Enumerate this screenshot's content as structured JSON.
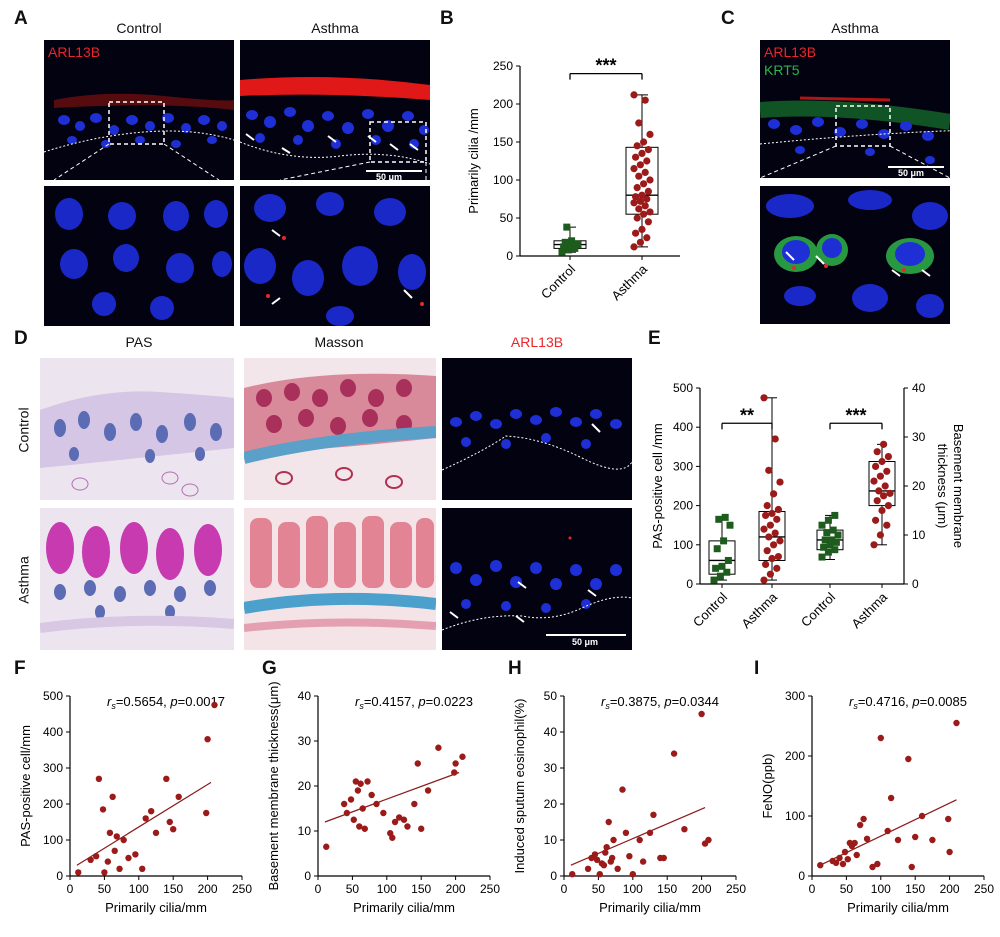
{
  "panel_letters": {
    "a": "A",
    "b": "B",
    "c": "C",
    "d": "D",
    "e": "E",
    "f": "F",
    "g": "G",
    "h": "H",
    "i": "I"
  },
  "panelA": {
    "title_control": "Control",
    "title_asthma": "Asthma",
    "channel": "ARL13B",
    "scale": "50 μm"
  },
  "panelC": {
    "title": "Asthma",
    "channel1": "ARL13B",
    "channel2": "KRT5",
    "scale": "50 μm"
  },
  "panelD": {
    "col1": "PAS",
    "col2": "Masson",
    "col3": "ARL13B",
    "row1": "Control",
    "row2": "Asthma",
    "scale": "50 μm"
  },
  "colors": {
    "control": "#1e5c1e",
    "asthma": "#9b1a1a",
    "fit": "#8b1a1a",
    "arl13b": "#e8262c",
    "krt5": "#2fb34a",
    "nuclei": "#1f2fd6"
  },
  "chart_data": [
    {
      "panel": "B",
      "type": "box",
      "ylabel": "Primarily cilia /mm",
      "ylim": [
        0,
        250
      ],
      "yticks": [
        0,
        50,
        100,
        150,
        200,
        250
      ],
      "categories": [
        "Control",
        "Asthma"
      ],
      "significance": "***",
      "boxes": [
        {
          "name": "Control",
          "min": 5,
          "q1": 10,
          "median": 15,
          "q3": 20,
          "max": 38
        },
        {
          "name": "Asthma",
          "min": 12,
          "q1": 55,
          "median": 80,
          "q3": 143,
          "max": 212
        }
      ],
      "points": {
        "Control": [
          5,
          8,
          10,
          12,
          14,
          16,
          18,
          20,
          15,
          38
        ],
        "Asthma": [
          12,
          18,
          24,
          30,
          35,
          45,
          50,
          55,
          58,
          62,
          66,
          70,
          72,
          75,
          78,
          80,
          85,
          90,
          95,
          100,
          105,
          110,
          115,
          120,
          125,
          130,
          135,
          140,
          145,
          150,
          160,
          175,
          205,
          212
        ]
      }
    },
    {
      "panel": "E",
      "type": "box",
      "ylabel": "PAS-positive cell /mm",
      "y2label": "Basement membrane thickness (μm)",
      "ylim": [
        0,
        500
      ],
      "yticks": [
        0,
        100,
        200,
        300,
        400,
        500
      ],
      "y2lim": [
        0,
        40
      ],
      "y2ticks": [
        0,
        10,
        20,
        30,
        40
      ],
      "categories": [
        "Control",
        "Asthma",
        "Control",
        "Asthma"
      ],
      "significance": [
        "**",
        "***"
      ],
      "boxes": [
        {
          "name": "Control",
          "axis": "left",
          "min": 10,
          "q1": 25,
          "median": 60,
          "q3": 110,
          "max": 170
        },
        {
          "name": "Asthma",
          "axis": "left",
          "min": 10,
          "q1": 60,
          "median": 120,
          "q3": 185,
          "max": 475
        },
        {
          "name": "Control",
          "axis": "right",
          "min": 5,
          "q1": 7,
          "median": 9,
          "q3": 11,
          "max": 14
        },
        {
          "name": "Asthma",
          "axis": "right",
          "min": 8,
          "q1": 16,
          "median": 19,
          "q3": 25,
          "max": 28.5
        }
      ],
      "points": {
        "Control_PAS": [
          10,
          20,
          30,
          40,
          45,
          60,
          90,
          110,
          150,
          165,
          170
        ],
        "Asthma_PAS": [
          10,
          25,
          40,
          50,
          65,
          70,
          85,
          100,
          110,
          120,
          130,
          140,
          150,
          165,
          175,
          180,
          190,
          200,
          230,
          260,
          290,
          370,
          475
        ],
        "Control_BM": [
          5.5,
          6.5,
          7,
          7.5,
          8,
          8.5,
          9,
          9,
          10,
          10.5,
          11,
          12,
          13,
          14
        ],
        "Asthma_BM": [
          8,
          10,
          12,
          13,
          15,
          16,
          17,
          18,
          18.5,
          19,
          20,
          21,
          22,
          23,
          24,
          25,
          26,
          27,
          28.5
        ]
      }
    },
    {
      "panel": "F",
      "type": "scatter",
      "xlabel": "Primarily cilia/mm",
      "ylabel": "PAS-positive cell/mm",
      "xlim": [
        0,
        250
      ],
      "ylim": [
        0,
        500
      ],
      "xticks": [
        0,
        50,
        100,
        150,
        200,
        250
      ],
      "yticks": [
        0,
        100,
        200,
        300,
        400,
        500
      ],
      "stat_rs": "=0.5654,",
      "stat_p": "=0.0017",
      "points": [
        [
          12,
          10
        ],
        [
          30,
          45
        ],
        [
          38,
          55
        ],
        [
          42,
          270
        ],
        [
          48,
          185
        ],
        [
          50,
          10
        ],
        [
          55,
          40
        ],
        [
          58,
          120
        ],
        [
          62,
          220
        ],
        [
          65,
          70
        ],
        [
          68,
          110
        ],
        [
          72,
          20
        ],
        [
          78,
          100
        ],
        [
          85,
          50
        ],
        [
          95,
          60
        ],
        [
          105,
          20
        ],
        [
          110,
          160
        ],
        [
          118,
          180
        ],
        [
          125,
          120
        ],
        [
          140,
          270
        ],
        [
          145,
          150
        ],
        [
          150,
          130
        ],
        [
          158,
          220
        ],
        [
          198,
          175
        ],
        [
          200,
          380
        ],
        [
          210,
          475
        ]
      ],
      "fit": [
        [
          10,
          30
        ],
        [
          205,
          260
        ]
      ]
    },
    {
      "panel": "G",
      "type": "scatter",
      "xlabel": "Primarily cilia/mm",
      "ylabel": "Basement membrane thickness(μm)",
      "xlim": [
        0,
        250
      ],
      "ylim": [
        0,
        40
      ],
      "xticks": [
        0,
        50,
        100,
        150,
        200,
        250
      ],
      "yticks": [
        0,
        10,
        20,
        30,
        40
      ],
      "stat_rs": "=0.4157,",
      "stat_p": "=0.0223",
      "points": [
        [
          12,
          6.5
        ],
        [
          38,
          16
        ],
        [
          42,
          14
        ],
        [
          48,
          17
        ],
        [
          52,
          12.5
        ],
        [
          55,
          21
        ],
        [
          58,
          19
        ],
        [
          60,
          11
        ],
        [
          62,
          20.5
        ],
        [
          65,
          15
        ],
        [
          68,
          10.5
        ],
        [
          72,
          21
        ],
        [
          78,
          18
        ],
        [
          85,
          16
        ],
        [
          95,
          14
        ],
        [
          105,
          9.5
        ],
        [
          108,
          8.5
        ],
        [
          112,
          12
        ],
        [
          118,
          13
        ],
        [
          125,
          12.5
        ],
        [
          130,
          11
        ],
        [
          140,
          16
        ],
        [
          145,
          25
        ],
        [
          150,
          10.5
        ],
        [
          160,
          19
        ],
        [
          175,
          28.5
        ],
        [
          198,
          23
        ],
        [
          200,
          25
        ],
        [
          210,
          26.5
        ]
      ],
      "fit": [
        [
          10,
          12
        ],
        [
          205,
          23
        ]
      ]
    },
    {
      "panel": "H",
      "type": "scatter",
      "xlabel": "Primarily cilia/mm",
      "ylabel": "Induced sputum  eosinophil(%)",
      "xlim": [
        0,
        250
      ],
      "ylim": [
        0,
        50
      ],
      "xticks": [
        0,
        50,
        100,
        150,
        200,
        250
      ],
      "yticks": [
        0,
        10,
        20,
        30,
        40,
        50
      ],
      "stat_rs": "=0.3875,",
      "stat_p": "=0.0344",
      "points": [
        [
          12,
          0.5
        ],
        [
          35,
          2
        ],
        [
          40,
          5
        ],
        [
          45,
          6
        ],
        [
          48,
          4.5
        ],
        [
          52,
          0.5
        ],
        [
          55,
          3.5
        ],
        [
          58,
          3
        ],
        [
          60,
          6.5
        ],
        [
          62,
          8
        ],
        [
          65,
          15
        ],
        [
          68,
          4
        ],
        [
          70,
          5
        ],
        [
          72,
          10
        ],
        [
          78,
          2
        ],
        [
          85,
          24
        ],
        [
          90,
          12
        ],
        [
          95,
          5.5
        ],
        [
          100,
          0.5
        ],
        [
          110,
          10
        ],
        [
          115,
          4
        ],
        [
          125,
          12
        ],
        [
          130,
          17
        ],
        [
          140,
          5
        ],
        [
          145,
          5
        ],
        [
          160,
          34
        ],
        [
          175,
          13
        ],
        [
          200,
          45
        ],
        [
          205,
          9
        ],
        [
          210,
          10
        ]
      ],
      "fit": [
        [
          10,
          3
        ],
        [
          205,
          19
        ]
      ]
    },
    {
      "panel": "I",
      "type": "scatter",
      "xlabel": "Primarily cilia/mm",
      "ylabel": "FeNO(ppb)",
      "xlim": [
        0,
        250
      ],
      "ylim": [
        0,
        300
      ],
      "xticks": [
        0,
        50,
        100,
        150,
        200,
        250
      ],
      "yticks": [
        0,
        100,
        200,
        300
      ],
      "stat_rs": "=0.4716,",
      "stat_p": "=0.0085",
      "points": [
        [
          12,
          18
        ],
        [
          30,
          25
        ],
        [
          35,
          22
        ],
        [
          40,
          30
        ],
        [
          45,
          20
        ],
        [
          48,
          40
        ],
        [
          52,
          28
        ],
        [
          55,
          55
        ],
        [
          58,
          50
        ],
        [
          62,
          55
        ],
        [
          65,
          35
        ],
        [
          70,
          85
        ],
        [
          75,
          95
        ],
        [
          80,
          62
        ],
        [
          88,
          15
        ],
        [
          95,
          20
        ],
        [
          100,
          230
        ],
        [
          110,
          75
        ],
        [
          115,
          130
        ],
        [
          125,
          60
        ],
        [
          140,
          195
        ],
        [
          145,
          15
        ],
        [
          150,
          65
        ],
        [
          160,
          100
        ],
        [
          175,
          60
        ],
        [
          198,
          95
        ],
        [
          200,
          40
        ],
        [
          210,
          255
        ]
      ],
      "fit": [
        [
          10,
          17
        ],
        [
          210,
          127
        ]
      ]
    }
  ]
}
